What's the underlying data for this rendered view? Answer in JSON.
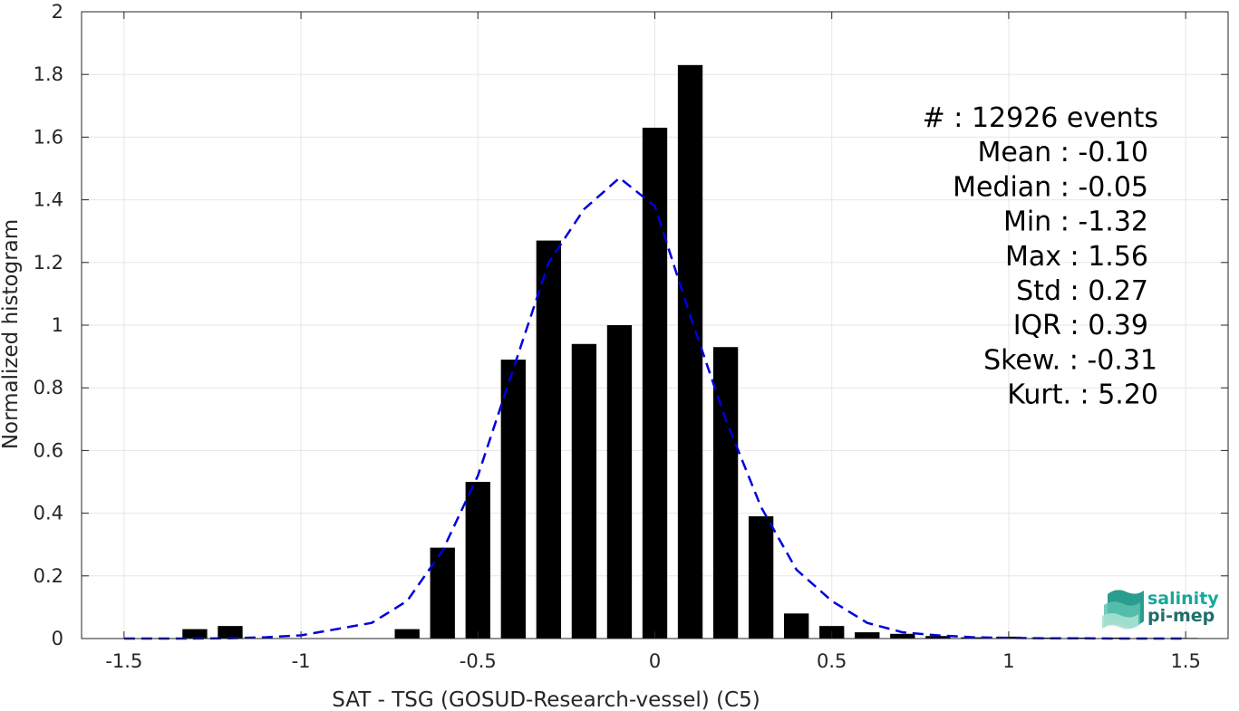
{
  "chart_data": {
    "type": "bar",
    "xlabel": "SAT - TSG (GOSUD-Research-vessel) (C5)",
    "ylabel": "Normalized histogram",
    "xlim": [
      -1.62,
      1.62
    ],
    "ylim": [
      0,
      2
    ],
    "x_ticks": [
      -1.5,
      -1,
      -0.5,
      0,
      0.5,
      1,
      1.5
    ],
    "x_tick_labels": [
      "-1.5",
      "-1",
      "-0.5",
      "0",
      "0.5",
      "1",
      "1.5"
    ],
    "y_ticks": [
      0,
      0.2,
      0.4,
      0.6,
      0.8,
      1,
      1.2,
      1.4,
      1.6,
      1.8,
      2
    ],
    "y_tick_labels": [
      "0",
      "0.2",
      "0.4",
      "0.6",
      "0.8",
      "1",
      "1.2",
      "1.4",
      "1.6",
      "1.8",
      "2"
    ],
    "grid": true,
    "bar_width": 0.07,
    "bar_color": "#000000",
    "series": [
      {
        "type": "bar",
        "x": [
          -1.5,
          -1.4,
          -1.3,
          -1.2,
          -1.1,
          -1.0,
          -0.9,
          -0.8,
          -0.7,
          -0.6,
          -0.5,
          -0.4,
          -0.3,
          -0.2,
          -0.1,
          0.0,
          0.1,
          0.2,
          0.3,
          0.4,
          0.5,
          0.6,
          0.7,
          0.8,
          0.9,
          1.0,
          1.1,
          1.2,
          1.3,
          1.4,
          1.5
        ],
        "values": [
          0,
          0,
          0.03,
          0.04,
          0,
          0,
          0,
          0,
          0.03,
          0.29,
          0.5,
          0.89,
          1.27,
          0.94,
          1.0,
          1.63,
          1.83,
          0.93,
          0.39,
          0.08,
          0.04,
          0.02,
          0.015,
          0.008,
          0.004,
          0.006,
          0.003,
          0.003,
          0.003,
          0.002,
          0.002
        ]
      },
      {
        "type": "line",
        "style": "dashed",
        "color": "#0000dd",
        "x": [
          -1.5,
          -1.4,
          -1.3,
          -1.2,
          -1.1,
          -1.0,
          -0.9,
          -0.8,
          -0.7,
          -0.6,
          -0.5,
          -0.4,
          -0.3,
          -0.2,
          -0.1,
          0.0,
          0.1,
          0.2,
          0.3,
          0.4,
          0.5,
          0.6,
          0.7,
          0.8,
          0.9,
          1.0,
          1.1,
          1.2,
          1.3,
          1.4,
          1.5
        ],
        "values": [
          0,
          0,
          0,
          0.001,
          0.004,
          0.01,
          0.03,
          0.05,
          0.12,
          0.28,
          0.52,
          0.86,
          1.2,
          1.37,
          1.47,
          1.38,
          1.03,
          0.7,
          0.42,
          0.22,
          0.12,
          0.05,
          0.02,
          0.01,
          0.004,
          0.002,
          0.001,
          0.001,
          0,
          0,
          0
        ]
      }
    ],
    "annotation_lines": [
      "#  : 12926 events",
      "Mean : -0.10",
      "Median : -0.05",
      "Min : -1.32",
      "Max : 1.56",
      "Std : 0.27",
      "IQR : 0.39",
      "Skew. : -0.31",
      "Kurt. : 5.20"
    ]
  },
  "logo": {
    "line1": "salinity",
    "line2": "pi-mep"
  },
  "colors": {
    "grid": "#e6e6e6",
    "axis": "#262626",
    "fit_line": "#0000dd",
    "logo_teal": "#1aa79a",
    "logo_dark": "#1f6f6a"
  }
}
